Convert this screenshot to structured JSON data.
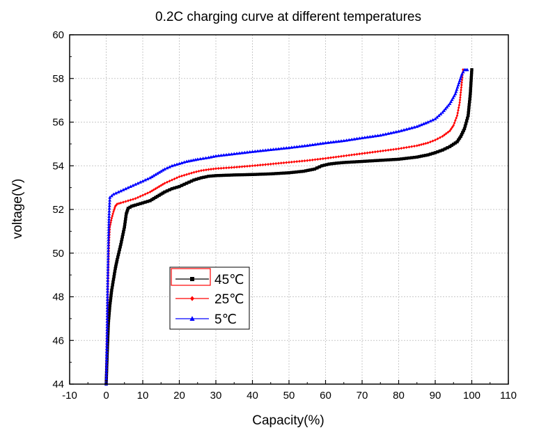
{
  "chart_data": {
    "type": "line",
    "title": "0.2C charging curve at different temperatures",
    "xlabel": "Capacity(%)",
    "ylabel": "voltage(V)",
    "xlim": [
      -10,
      110
    ],
    "ylim": [
      44,
      60
    ],
    "xticks": [
      -10,
      0,
      10,
      20,
      30,
      40,
      50,
      60,
      70,
      80,
      90,
      100,
      110
    ],
    "yticks": [
      44,
      46,
      48,
      50,
      52,
      54,
      56,
      58,
      60
    ],
    "grid": true,
    "legend_position": "center-left",
    "series": [
      {
        "name": "45℃",
        "color": "#000000",
        "marker": "square",
        "points": [
          [
            0,
            44
          ],
          [
            0.3,
            45.5
          ],
          [
            0.6,
            46.8
          ],
          [
            1,
            47.6
          ],
          [
            1.5,
            48.3
          ],
          [
            2,
            48.8
          ],
          [
            2.5,
            49.3
          ],
          [
            3,
            49.7
          ],
          [
            4,
            50.4
          ],
          [
            5,
            51.2
          ],
          [
            5.5,
            51.8
          ],
          [
            6,
            52.05
          ],
          [
            7,
            52.15
          ],
          [
            8,
            52.2
          ],
          [
            10,
            52.3
          ],
          [
            12,
            52.4
          ],
          [
            14,
            52.6
          ],
          [
            16,
            52.8
          ],
          [
            18,
            52.95
          ],
          [
            20,
            53.05
          ],
          [
            22,
            53.2
          ],
          [
            24,
            53.35
          ],
          [
            26,
            53.45
          ],
          [
            28,
            53.52
          ],
          [
            30,
            53.55
          ],
          [
            35,
            53.58
          ],
          [
            40,
            53.6
          ],
          [
            45,
            53.63
          ],
          [
            50,
            53.68
          ],
          [
            54,
            53.75
          ],
          [
            57,
            53.85
          ],
          [
            59,
            54.0
          ],
          [
            61,
            54.08
          ],
          [
            63,
            54.12
          ],
          [
            65,
            54.15
          ],
          [
            70,
            54.2
          ],
          [
            75,
            54.25
          ],
          [
            80,
            54.3
          ],
          [
            85,
            54.4
          ],
          [
            88,
            54.5
          ],
          [
            90,
            54.6
          ],
          [
            92,
            54.72
          ],
          [
            94,
            54.88
          ],
          [
            96,
            55.1
          ],
          [
            97,
            55.35
          ],
          [
            98,
            55.7
          ],
          [
            99,
            56.3
          ],
          [
            99.6,
            57.3
          ],
          [
            100,
            58.4
          ]
        ]
      },
      {
        "name": "25℃",
        "color": "#ff0000",
        "marker": "diamond",
        "points": [
          [
            0,
            44
          ],
          [
            0.2,
            46
          ],
          [
            0.4,
            48
          ],
          [
            0.6,
            49.5
          ],
          [
            0.8,
            50.6
          ],
          [
            1,
            51.2
          ],
          [
            1.5,
            51.6
          ],
          [
            2,
            51.9
          ],
          [
            2.5,
            52.15
          ],
          [
            3,
            52.25
          ],
          [
            4,
            52.3
          ],
          [
            6,
            52.4
          ],
          [
            8,
            52.5
          ],
          [
            10,
            52.65
          ],
          [
            12,
            52.8
          ],
          [
            14,
            53.0
          ],
          [
            16,
            53.2
          ],
          [
            18,
            53.35
          ],
          [
            20,
            53.5
          ],
          [
            22,
            53.6
          ],
          [
            24,
            53.7
          ],
          [
            26,
            53.78
          ],
          [
            28,
            53.83
          ],
          [
            30,
            53.87
          ],
          [
            35,
            53.93
          ],
          [
            40,
            54.0
          ],
          [
            45,
            54.08
          ],
          [
            50,
            54.16
          ],
          [
            55,
            54.24
          ],
          [
            60,
            54.34
          ],
          [
            65,
            54.45
          ],
          [
            70,
            54.56
          ],
          [
            75,
            54.67
          ],
          [
            80,
            54.78
          ],
          [
            85,
            54.92
          ],
          [
            88,
            55.05
          ],
          [
            90,
            55.18
          ],
          [
            92,
            55.35
          ],
          [
            94,
            55.6
          ],
          [
            95,
            55.85
          ],
          [
            96,
            56.3
          ],
          [
            96.7,
            56.9
          ],
          [
            97.2,
            57.7
          ],
          [
            97.6,
            58.4
          ]
        ]
      },
      {
        "name": "5℃",
        "color": "#0000ff",
        "marker": "triangle",
        "points": [
          [
            0,
            44
          ],
          [
            0.2,
            46
          ],
          [
            0.4,
            48.5
          ],
          [
            0.6,
            50.5
          ],
          [
            0.8,
            51.8
          ],
          [
            1,
            52.55
          ],
          [
            2,
            52.7
          ],
          [
            4,
            52.85
          ],
          [
            6,
            53.0
          ],
          [
            8,
            53.15
          ],
          [
            10,
            53.3
          ],
          [
            12,
            53.45
          ],
          [
            14,
            53.65
          ],
          [
            16,
            53.85
          ],
          [
            18,
            54.0
          ],
          [
            20,
            54.1
          ],
          [
            22,
            54.2
          ],
          [
            25,
            54.3
          ],
          [
            28,
            54.38
          ],
          [
            30,
            54.45
          ],
          [
            35,
            54.55
          ],
          [
            40,
            54.65
          ],
          [
            45,
            54.74
          ],
          [
            50,
            54.83
          ],
          [
            55,
            54.93
          ],
          [
            60,
            55.05
          ],
          [
            65,
            55.15
          ],
          [
            70,
            55.28
          ],
          [
            75,
            55.4
          ],
          [
            80,
            55.58
          ],
          [
            85,
            55.8
          ],
          [
            88,
            56.0
          ],
          [
            90,
            56.15
          ],
          [
            92,
            56.45
          ],
          [
            94,
            56.85
          ],
          [
            95.5,
            57.3
          ],
          [
            96.5,
            57.8
          ],
          [
            97.3,
            58.2
          ],
          [
            98,
            58.4
          ],
          [
            98.8,
            58.4
          ]
        ]
      }
    ]
  }
}
